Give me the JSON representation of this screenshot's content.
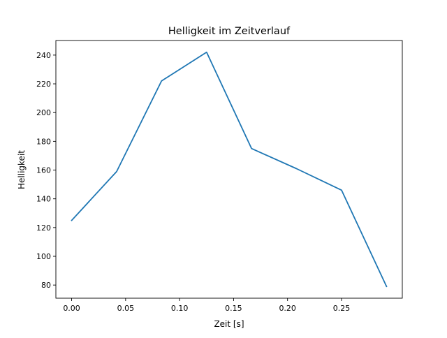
{
  "chart_data": {
    "type": "line",
    "title": "Helligkeit im Zeitverlauf",
    "xlabel": "Zeit [s]",
    "ylabel": "Helligkeit",
    "x": [
      0.0,
      0.0417,
      0.0833,
      0.125,
      0.1667,
      0.2083,
      0.25,
      0.2917
    ],
    "series": [
      {
        "name": "Helligkeit",
        "color": "#1f77b4",
        "values": [
          125,
          159,
          222,
          242,
          175,
          161,
          146,
          79
        ]
      }
    ],
    "xlim": [
      -0.0146,
      0.3063
    ],
    "ylim": [
      70.85,
      250.15
    ],
    "xticks": [
      0.0,
      0.05,
      0.1,
      0.15,
      0.2,
      0.25
    ],
    "xtick_labels": [
      "0.00",
      "0.05",
      "0.10",
      "0.15",
      "0.20",
      "0.25"
    ],
    "yticks": [
      80,
      100,
      120,
      140,
      160,
      180,
      200,
      220,
      240
    ],
    "ytick_labels": [
      "80",
      "100",
      "120",
      "140",
      "160",
      "180",
      "200",
      "220",
      "240"
    ],
    "grid": false,
    "legend": "none"
  }
}
